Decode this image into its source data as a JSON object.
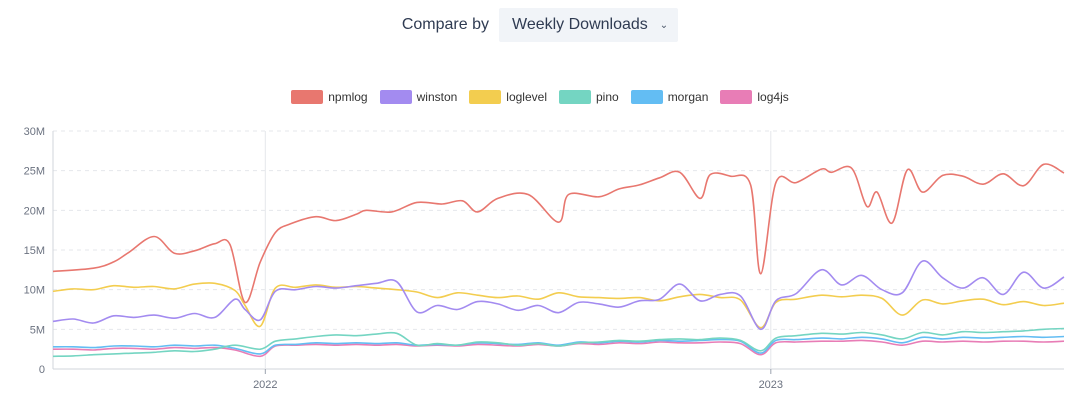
{
  "compare": {
    "label": "Compare by",
    "selected": "Weekly Downloads"
  },
  "colors": {
    "npmlog": "#e8776f",
    "winston": "#a38bf0",
    "loglevel": "#f3cd4f",
    "pino": "#74d5c2",
    "morgan": "#63bdf3",
    "log4js": "#e87db6",
    "grid": "#e5e7eb",
    "axis_text": "#6b7280"
  },
  "chart_data": {
    "type": "line",
    "title": "",
    "xlabel": "",
    "ylabel": "",
    "ylim": [
      0,
      30000000
    ],
    "y_ticks": [
      {
        "value": 0,
        "label": "0"
      },
      {
        "value": 5000000,
        "label": "5M"
      },
      {
        "value": 10000000,
        "label": "10M"
      },
      {
        "value": 15000000,
        "label": "15M"
      },
      {
        "value": 20000000,
        "label": "20M"
      },
      {
        "value": 25000000,
        "label": "25M"
      },
      {
        "value": 30000000,
        "label": "30M"
      }
    ],
    "xlim": [
      2021.58,
      2023.58
    ],
    "x_ticks": [
      {
        "value": 2022.0,
        "label": "2022"
      },
      {
        "value": 2023.0,
        "label": "2023"
      }
    ],
    "legend": [
      "npmlog",
      "winston",
      "loglevel",
      "pino",
      "morgan",
      "log4js"
    ],
    "series": [
      {
        "name": "npmlog",
        "x": [
          2021.58,
          2021.66,
          2021.7,
          2021.73,
          2021.78,
          2021.82,
          2021.86,
          2021.9,
          2021.93,
          2021.96,
          2021.99,
          2022.02,
          2022.05,
          2022.1,
          2022.14,
          2022.18,
          2022.2,
          2022.25,
          2022.3,
          2022.35,
          2022.39,
          2022.42,
          2022.46,
          2022.52,
          2022.58,
          2022.6,
          2022.66,
          2022.7,
          2022.74,
          2022.78,
          2022.82,
          2022.86,
          2022.88,
          2022.92,
          2022.96,
          2022.98,
          2023.01,
          2023.05,
          2023.1,
          2023.12,
          2023.16,
          2023.19,
          2023.21,
          2023.24,
          2023.27,
          2023.3,
          2023.34,
          2023.38,
          2023.42,
          2023.46,
          2023.5,
          2023.54,
          2023.58
        ],
        "values": [
          12300000,
          12700000,
          13500000,
          14700000,
          16700000,
          14600000,
          14900000,
          15800000,
          15700000,
          8400000,
          13500000,
          17200000,
          18300000,
          19200000,
          18700000,
          19500000,
          20000000,
          19800000,
          21000000,
          20800000,
          21200000,
          19800000,
          21500000,
          22000000,
          18500000,
          22000000,
          21700000,
          22700000,
          23200000,
          24100000,
          24800000,
          21500000,
          24500000,
          24300000,
          23200000,
          12000000,
          23500000,
          23500000,
          25200000,
          24800000,
          25300000,
          20500000,
          22300000,
          18400000,
          25100000,
          22300000,
          24400000,
          24300000,
          23300000,
          24600000,
          23100000,
          25800000,
          24700000
        ]
      },
      {
        "name": "winston",
        "x": [
          2021.58,
          2021.62,
          2021.66,
          2021.7,
          2021.74,
          2021.78,
          2021.82,
          2021.86,
          2021.9,
          2021.94,
          2021.96,
          2021.99,
          2022.02,
          2022.06,
          2022.1,
          2022.14,
          2022.18,
          2022.22,
          2022.26,
          2022.3,
          2022.34,
          2022.38,
          2022.42,
          2022.46,
          2022.5,
          2022.54,
          2022.58,
          2022.62,
          2022.66,
          2022.7,
          2022.74,
          2022.78,
          2022.82,
          2022.86,
          2022.9,
          2022.94,
          2022.98,
          2023.01,
          2023.05,
          2023.1,
          2023.14,
          2023.18,
          2023.22,
          2023.26,
          2023.3,
          2023.34,
          2023.38,
          2023.42,
          2023.46,
          2023.5,
          2023.54,
          2023.58
        ],
        "values": [
          6000000,
          6300000,
          5800000,
          6700000,
          6500000,
          6800000,
          6400000,
          7000000,
          6500000,
          8800000,
          7500000,
          6200000,
          9800000,
          10000000,
          10400000,
          10200000,
          10500000,
          10800000,
          11000000,
          7200000,
          8000000,
          7500000,
          8500000,
          8200000,
          7400000,
          8000000,
          7100000,
          8400000,
          8200000,
          7800000,
          8600000,
          8800000,
          10700000,
          8600000,
          9400000,
          9200000,
          5000000,
          8600000,
          9500000,
          12500000,
          10600000,
          11800000,
          10000000,
          9600000,
          13600000,
          11500000,
          10200000,
          11500000,
          9400000,
          12200000,
          10200000,
          11600000
        ]
      },
      {
        "name": "loglevel",
        "x": [
          2021.58,
          2021.62,
          2021.66,
          2021.7,
          2021.74,
          2021.78,
          2021.82,
          2021.86,
          2021.9,
          2021.94,
          2021.96,
          2021.99,
          2022.02,
          2022.06,
          2022.1,
          2022.14,
          2022.18,
          2022.22,
          2022.26,
          2022.3,
          2022.34,
          2022.38,
          2022.42,
          2022.46,
          2022.5,
          2022.54,
          2022.58,
          2022.62,
          2022.66,
          2022.7,
          2022.74,
          2022.78,
          2022.82,
          2022.86,
          2022.9,
          2022.94,
          2022.98,
          2023.01,
          2023.05,
          2023.1,
          2023.14,
          2023.18,
          2023.22,
          2023.26,
          2023.3,
          2023.34,
          2023.38,
          2023.42,
          2023.46,
          2023.5,
          2023.54,
          2023.58
        ],
        "values": [
          9800000,
          10100000,
          10000000,
          10500000,
          10300000,
          10400000,
          10100000,
          10700000,
          10800000,
          9900000,
          8000000,
          5400000,
          10200000,
          10300000,
          10600000,
          10300000,
          10400000,
          10200000,
          10000000,
          9700000,
          9000000,
          9600000,
          9300000,
          9000000,
          9200000,
          8800000,
          9600000,
          9100000,
          9000000,
          8900000,
          9000000,
          8600000,
          9100000,
          9400000,
          9000000,
          8700000,
          5200000,
          8400000,
          8800000,
          9300000,
          9100000,
          9300000,
          8900000,
          6800000,
          8700000,
          8200000,
          8600000,
          8800000,
          8100000,
          8500000,
          8000000,
          8300000
        ]
      },
      {
        "name": "pino",
        "x": [
          2021.58,
          2021.62,
          2021.66,
          2021.7,
          2021.74,
          2021.78,
          2021.82,
          2021.86,
          2021.9,
          2021.94,
          2021.99,
          2022.02,
          2022.06,
          2022.1,
          2022.14,
          2022.18,
          2022.22,
          2022.26,
          2022.3,
          2022.34,
          2022.38,
          2022.42,
          2022.46,
          2022.5,
          2022.54,
          2022.58,
          2022.62,
          2022.66,
          2022.7,
          2022.74,
          2022.78,
          2022.82,
          2022.86,
          2022.9,
          2022.94,
          2022.98,
          2023.01,
          2023.05,
          2023.1,
          2023.14,
          2023.18,
          2023.22,
          2023.26,
          2023.3,
          2023.34,
          2023.38,
          2023.42,
          2023.46,
          2023.5,
          2023.54,
          2023.58
        ],
        "values": [
          1600000,
          1650000,
          1800000,
          1900000,
          2000000,
          2100000,
          2300000,
          2200000,
          2500000,
          3000000,
          2500000,
          3500000,
          3800000,
          4100000,
          4300000,
          4200000,
          4400000,
          4500000,
          3000000,
          3200000,
          3000000,
          3400000,
          3300000,
          3000000,
          3200000,
          2900000,
          3300000,
          3400000,
          3600000,
          3500000,
          3700000,
          3800000,
          3700000,
          3900000,
          3600000,
          2300000,
          3900000,
          4200000,
          4500000,
          4400000,
          4600000,
          4300000,
          3800000,
          4600000,
          4300000,
          4700000,
          4600000,
          4700000,
          4800000,
          5000000,
          5100000
        ]
      },
      {
        "name": "morgan",
        "x": [
          2021.58,
          2021.62,
          2021.66,
          2021.7,
          2021.74,
          2021.78,
          2021.82,
          2021.86,
          2021.9,
          2021.94,
          2021.99,
          2022.02,
          2022.06,
          2022.1,
          2022.14,
          2022.18,
          2022.22,
          2022.26,
          2022.3,
          2022.34,
          2022.38,
          2022.42,
          2022.46,
          2022.5,
          2022.54,
          2022.58,
          2022.62,
          2022.66,
          2022.7,
          2022.74,
          2022.78,
          2022.82,
          2022.86,
          2022.9,
          2022.94,
          2022.98,
          2023.01,
          2023.05,
          2023.1,
          2023.14,
          2023.18,
          2023.22,
          2023.26,
          2023.3,
          2023.34,
          2023.38,
          2023.42,
          2023.46,
          2023.5,
          2023.54,
          2023.58
        ],
        "values": [
          2800000,
          2800000,
          2700000,
          2900000,
          2900000,
          2800000,
          3000000,
          2900000,
          3000000,
          2600000,
          1900000,
          3000000,
          3100000,
          3300000,
          3200000,
          3300000,
          3200000,
          3300000,
          3000000,
          3100000,
          3000000,
          3300000,
          3200000,
          3100000,
          3300000,
          3000000,
          3400000,
          3300000,
          3500000,
          3400000,
          3600000,
          3500000,
          3600000,
          3700000,
          3500000,
          2000000,
          3600000,
          3700000,
          3900000,
          3800000,
          4000000,
          3800000,
          3300000,
          4000000,
          3800000,
          4000000,
          3900000,
          4000000,
          4100000,
          4000000,
          4100000
        ]
      },
      {
        "name": "log4js",
        "x": [
          2021.58,
          2021.62,
          2021.66,
          2021.7,
          2021.74,
          2021.78,
          2021.82,
          2021.86,
          2021.9,
          2021.94,
          2021.99,
          2022.02,
          2022.06,
          2022.1,
          2022.14,
          2022.18,
          2022.22,
          2022.26,
          2022.3,
          2022.34,
          2022.38,
          2022.42,
          2022.46,
          2022.5,
          2022.54,
          2022.58,
          2022.62,
          2022.66,
          2022.7,
          2022.74,
          2022.78,
          2022.82,
          2022.86,
          2022.9,
          2022.94,
          2022.98,
          2023.01,
          2023.05,
          2023.1,
          2023.14,
          2023.18,
          2023.22,
          2023.26,
          2023.3,
          2023.34,
          2023.38,
          2023.42,
          2023.46,
          2023.5,
          2023.54,
          2023.58
        ],
        "values": [
          2500000,
          2500000,
          2400000,
          2600000,
          2600000,
          2500000,
          2700000,
          2600000,
          2700000,
          2400000,
          1600000,
          2900000,
          3000000,
          3100000,
          3000000,
          3100000,
          3000000,
          3100000,
          2900000,
          3000000,
          2900000,
          3100000,
          3000000,
          2900000,
          3100000,
          2900000,
          3200000,
          3100000,
          3300000,
          3200000,
          3400000,
          3300000,
          3300000,
          3400000,
          3200000,
          1800000,
          3300000,
          3400000,
          3500000,
          3500000,
          3600000,
          3400000,
          3000000,
          3500000,
          3400000,
          3500000,
          3400000,
          3500000,
          3500000,
          3400000,
          3500000
        ]
      }
    ]
  }
}
